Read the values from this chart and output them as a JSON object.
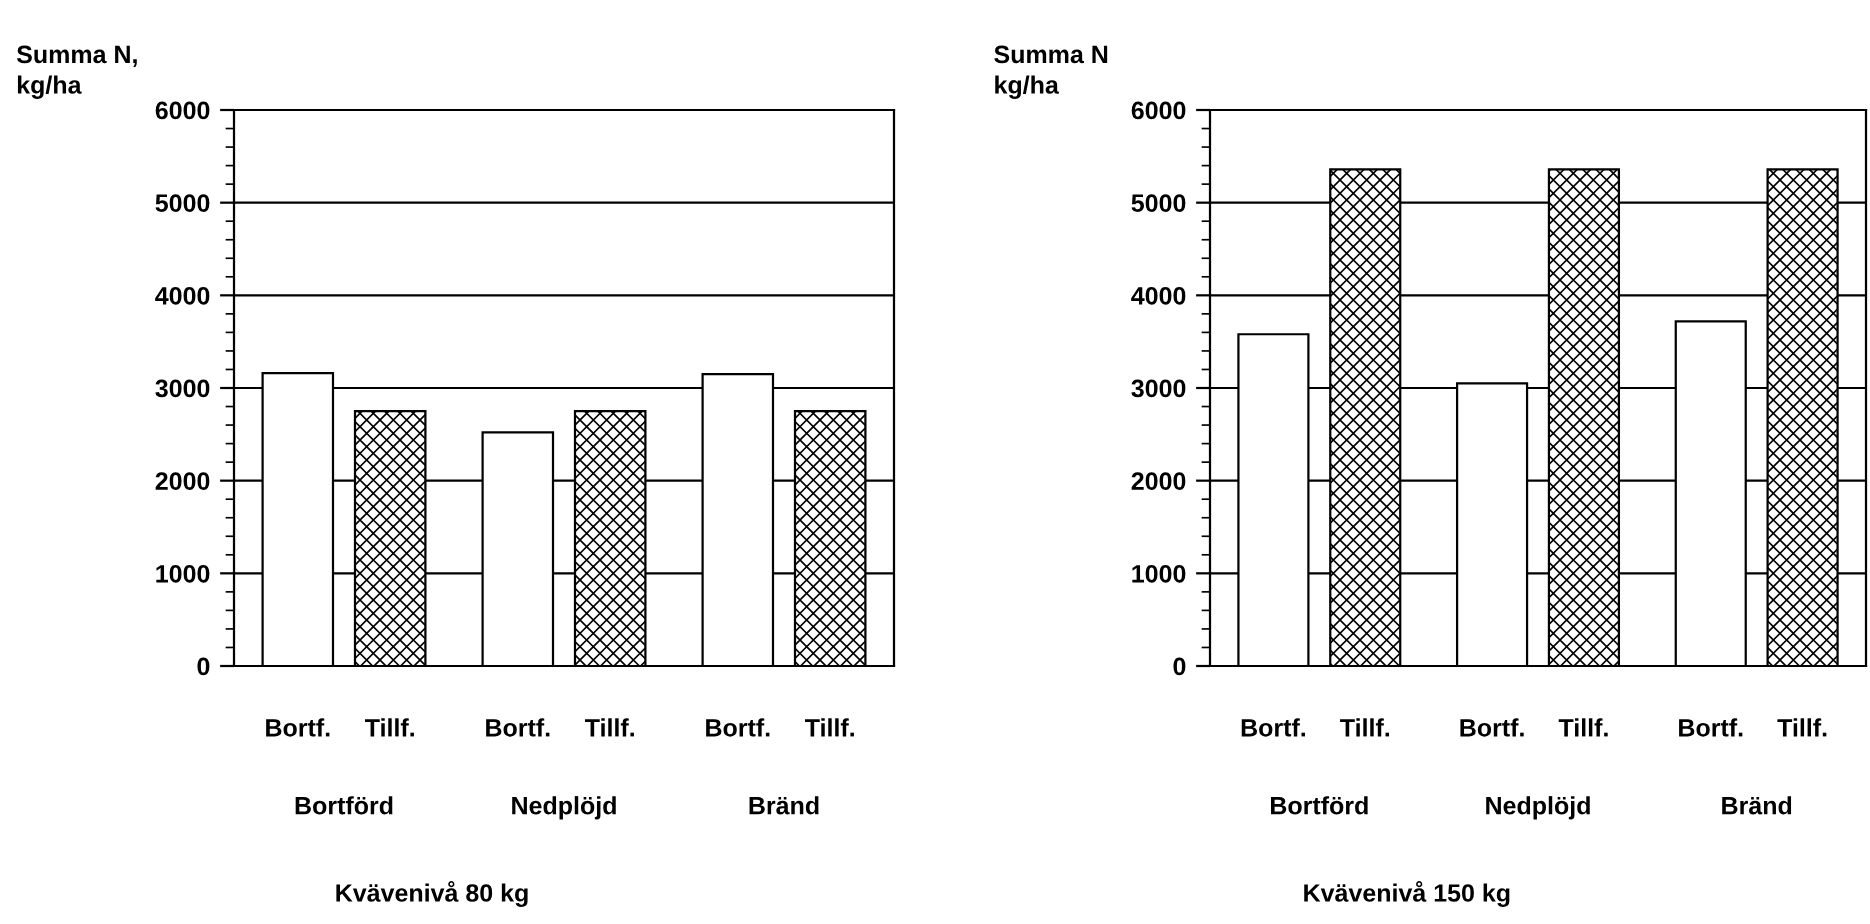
{
  "chart_data": [
    {
      "type": "bar",
      "ylabel": "Summa N,\nkg/ha",
      "xlabel": "Kvävenivå 80 kg",
      "categories": [
        "Bortförd",
        "Nedplöjd",
        "Bränd"
      ],
      "series": [
        {
          "name": "Bortf.",
          "color": "#ffffff",
          "values": [
            3160,
            2520,
            3150
          ]
        },
        {
          "name": "Tillf.",
          "color": "#000000",
          "values": [
            2750,
            2750,
            2750
          ]
        }
      ],
      "ylim": [
        0,
        6000
      ],
      "yticks": [
        0,
        1000,
        2000,
        3000,
        4000,
        5000,
        6000
      ],
      "grid": "y",
      "legend": false
    },
    {
      "type": "bar",
      "ylabel": "Summa N\nkg/ha",
      "xlabel": "Kvävenivå 150 kg",
      "categories": [
        "Bortförd",
        "Nedplöjd",
        "Bränd"
      ],
      "series": [
        {
          "name": "Bortf.",
          "color": "#ffffff",
          "values": [
            3580,
            3050,
            3720
          ]
        },
        {
          "name": "Tillf.",
          "color": "#000000",
          "values": [
            5360,
            5360,
            5360
          ]
        }
      ],
      "ylim": [
        0,
        6000
      ],
      "yticks": [
        0,
        1000,
        2000,
        3000,
        4000,
        5000,
        6000
      ],
      "grid": "y",
      "legend": false
    }
  ]
}
